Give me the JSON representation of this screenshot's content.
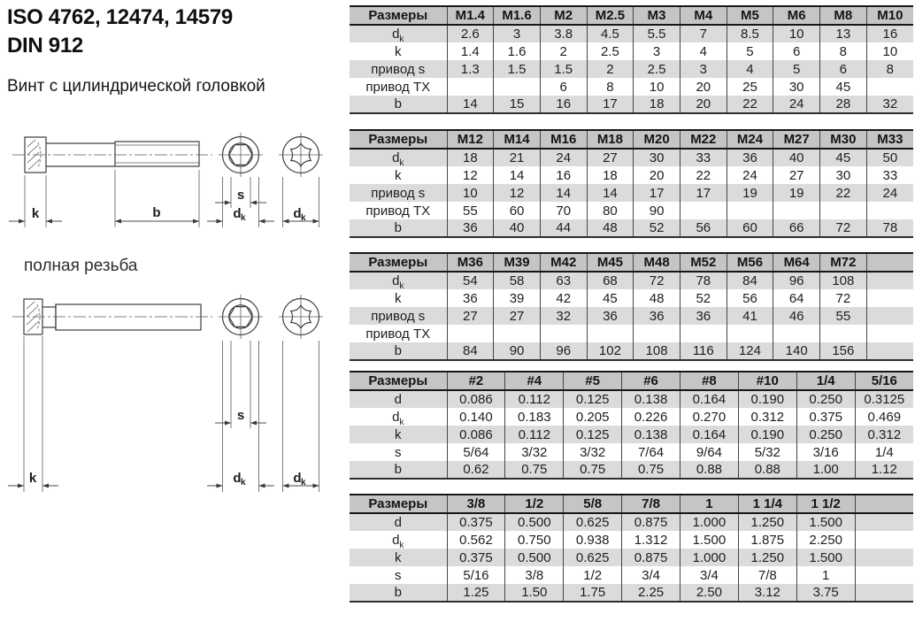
{
  "header": {
    "standards_line1": "ISO 4762, 12474, 14579",
    "standards_line2": "DIN 912",
    "product_name": "Винт с цилиндрической головкой"
  },
  "section": {
    "full_thread_label": "полная резьба"
  },
  "drawing": {
    "dim_k": "k",
    "dim_b": "b",
    "dim_s": "s",
    "dim_d_base": "d",
    "dim_d_sub": "k"
  },
  "colors": {
    "table_header_bg": "#c5c5c6",
    "table_stripe_bg": "#dbdbdc",
    "table_border": "#161616"
  },
  "tables": [
    {
      "corner": "Размеры",
      "columns": [
        "M1.4",
        "M1.6",
        "M2",
        "M2.5",
        "M3",
        "M4",
        "M5",
        "M6",
        "M8",
        "M10"
      ],
      "rows": [
        {
          "label": "d_k",
          "values": [
            "2.6",
            "3",
            "3.8",
            "4.5",
            "5.5",
            "7",
            "8.5",
            "10",
            "13",
            "16"
          ]
        },
        {
          "label": "k",
          "values": [
            "1.4",
            "1.6",
            "2",
            "2.5",
            "3",
            "4",
            "5",
            "6",
            "8",
            "10"
          ]
        },
        {
          "label": "привод s",
          "values": [
            "1.3",
            "1.5",
            "1.5",
            "2",
            "2.5",
            "3",
            "4",
            "5",
            "6",
            "8"
          ]
        },
        {
          "label": "привод TX",
          "values": [
            "",
            "",
            "6",
            "8",
            "10",
            "20",
            "25",
            "30",
            "45",
            ""
          ]
        },
        {
          "label": "b",
          "values": [
            "14",
            "15",
            "16",
            "17",
            "18",
            "20",
            "22",
            "24",
            "28",
            "32"
          ]
        }
      ]
    },
    {
      "corner": "Размеры",
      "columns": [
        "M12",
        "M14",
        "M16",
        "M18",
        "M20",
        "M22",
        "M24",
        "M27",
        "M30",
        "M33"
      ],
      "rows": [
        {
          "label": "d_k",
          "values": [
            "18",
            "21",
            "24",
            "27",
            "30",
            "33",
            "36",
            "40",
            "45",
            "50"
          ]
        },
        {
          "label": "k",
          "values": [
            "12",
            "14",
            "16",
            "18",
            "20",
            "22",
            "24",
            "27",
            "30",
            "33"
          ]
        },
        {
          "label": "привод s",
          "values": [
            "10",
            "12",
            "14",
            "14",
            "17",
            "17",
            "19",
            "19",
            "22",
            "24"
          ]
        },
        {
          "label": "привод TX",
          "values": [
            "55",
            "60",
            "70",
            "80",
            "90",
            "",
            "",
            "",
            "",
            ""
          ]
        },
        {
          "label": "b",
          "values": [
            "36",
            "40",
            "44",
            "48",
            "52",
            "56",
            "60",
            "66",
            "72",
            "78"
          ]
        }
      ]
    },
    {
      "corner": "Размеры",
      "columns": [
        "M36",
        "M39",
        "M42",
        "M45",
        "M48",
        "M52",
        "M56",
        "M64",
        "M72",
        ""
      ],
      "rows": [
        {
          "label": "d_k",
          "values": [
            "54",
            "58",
            "63",
            "68",
            "72",
            "78",
            "84",
            "96",
            "108",
            ""
          ]
        },
        {
          "label": "k",
          "values": [
            "36",
            "39",
            "42",
            "45",
            "48",
            "52",
            "56",
            "64",
            "72",
            ""
          ]
        },
        {
          "label": "привод s",
          "values": [
            "27",
            "27",
            "32",
            "36",
            "36",
            "36",
            "41",
            "46",
            "55",
            ""
          ]
        },
        {
          "label": "привод TX",
          "values": [
            "",
            "",
            "",
            "",
            "",
            "",
            "",
            "",
            "",
            ""
          ]
        },
        {
          "label": "b",
          "values": [
            "84",
            "90",
            "96",
            "102",
            "108",
            "116",
            "124",
            "140",
            "156",
            ""
          ]
        }
      ]
    },
    {
      "corner": "Размеры",
      "columns": [
        "#2",
        "#4",
        "#5",
        "#6",
        "#8",
        "#10",
        "1/4",
        "5/16"
      ],
      "rows": [
        {
          "label": "d",
          "values": [
            "0.086",
            "0.112",
            "0.125",
            "0.138",
            "0.164",
            "0.190",
            "0.250",
            "0.3125"
          ]
        },
        {
          "label": "d_k",
          "values": [
            "0.140",
            "0.183",
            "0.205",
            "0.226",
            "0.270",
            "0.312",
            "0.375",
            "0.469"
          ]
        },
        {
          "label": "k",
          "values": [
            "0.086",
            "0.112",
            "0.125",
            "0.138",
            "0.164",
            "0.190",
            "0.250",
            "0.312"
          ]
        },
        {
          "label": "s",
          "values": [
            "5/64",
            "3/32",
            "3/32",
            "7/64",
            "9/64",
            "5/32",
            "3/16",
            "1/4"
          ]
        },
        {
          "label": "b",
          "values": [
            "0.62",
            "0.75",
            "0.75",
            "0.75",
            "0.88",
            "0.88",
            "1.00",
            "1.12"
          ]
        }
      ]
    },
    {
      "corner": "Размеры",
      "columns": [
        "3/8",
        "1/2",
        "5/8",
        "7/8",
        "1",
        "1 1/4",
        "1 1/2",
        ""
      ],
      "rows": [
        {
          "label": "d",
          "values": [
            "0.375",
            "0.500",
            "0.625",
            "0.875",
            "1.000",
            "1.250",
            "1.500",
            ""
          ]
        },
        {
          "label": "d_k",
          "values": [
            "0.562",
            "0.750",
            "0.938",
            "1.312",
            "1.500",
            "1.875",
            "2.250",
            ""
          ]
        },
        {
          "label": "k",
          "values": [
            "0.375",
            "0.500",
            "0.625",
            "0.875",
            "1.000",
            "1.250",
            "1.500",
            ""
          ]
        },
        {
          "label": "s",
          "values": [
            "5/16",
            "3/8",
            "1/2",
            "3/4",
            "3/4",
            "7/8",
            "1",
            ""
          ]
        },
        {
          "label": "b",
          "values": [
            "1.25",
            "1.50",
            "1.75",
            "2.25",
            "2.50",
            "3.12",
            "3.75",
            ""
          ]
        }
      ]
    }
  ]
}
